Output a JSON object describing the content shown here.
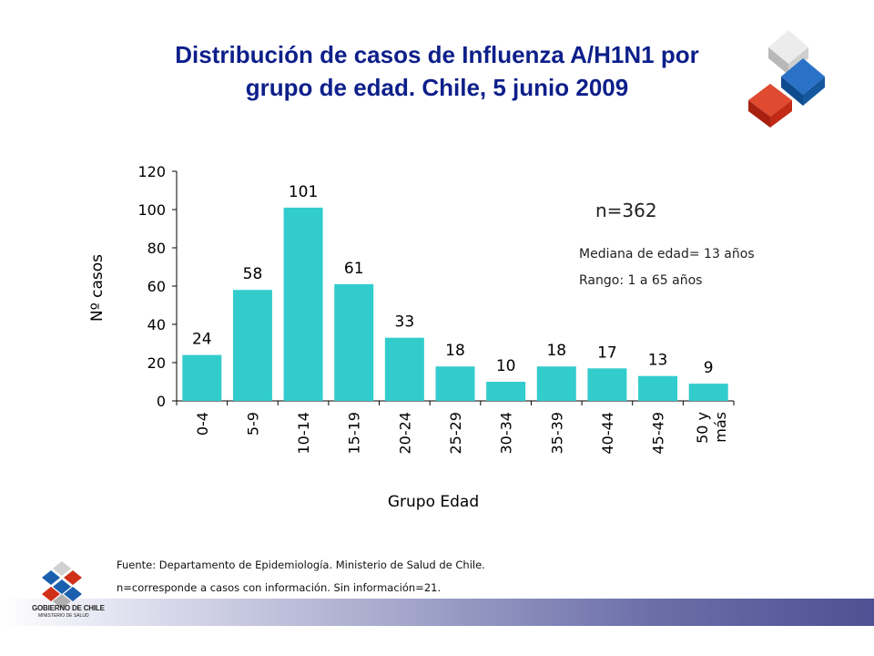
{
  "slide": {
    "title_line1": "Distribución de casos de Influenza A/H1N1 por",
    "title_line2": "grupo de edad. Chile, 5 junio 2009",
    "n_text": "n=362",
    "median_text": "Mediana de edad= 13 años",
    "range_text": "Rango: 1 a 65 años",
    "footnote1": "Fuente: Departamento de Epidemiología.  Ministerio de Salud de Chile.",
    "footnote2": "n=corresponde a casos con información. Sin información=21.",
    "logo_text1": "GOBIERNO DE CHILE",
    "logo_text2": "MINISTERIO DE SALUD"
  },
  "colors": {
    "bar": "#33cccc",
    "title": "#0d1f8a",
    "cube_gray": "#d0d0d0",
    "cube_blue": "#1560b0",
    "cube_red": "#d03018"
  },
  "chart_data": {
    "type": "bar",
    "categories": [
      "0-4",
      "5-9",
      "10-14",
      "15-19",
      "20-24",
      "25-29",
      "30-34",
      "35-39",
      "40-44",
      "45-49",
      "50 y más"
    ],
    "values": [
      24,
      58,
      101,
      61,
      33,
      18,
      10,
      18,
      17,
      13,
      9
    ],
    "data_labels": [
      "24",
      "58",
      "101",
      "61",
      "33",
      "18",
      "10",
      "18",
      "17",
      "13",
      "9"
    ],
    "xlabel": "Grupo Edad",
    "ylabel": "Nº casos",
    "ylim": [
      0,
      120
    ],
    "yticks": [
      0,
      20,
      40,
      60,
      80,
      100,
      120
    ],
    "grid": false,
    "legend": "none"
  }
}
